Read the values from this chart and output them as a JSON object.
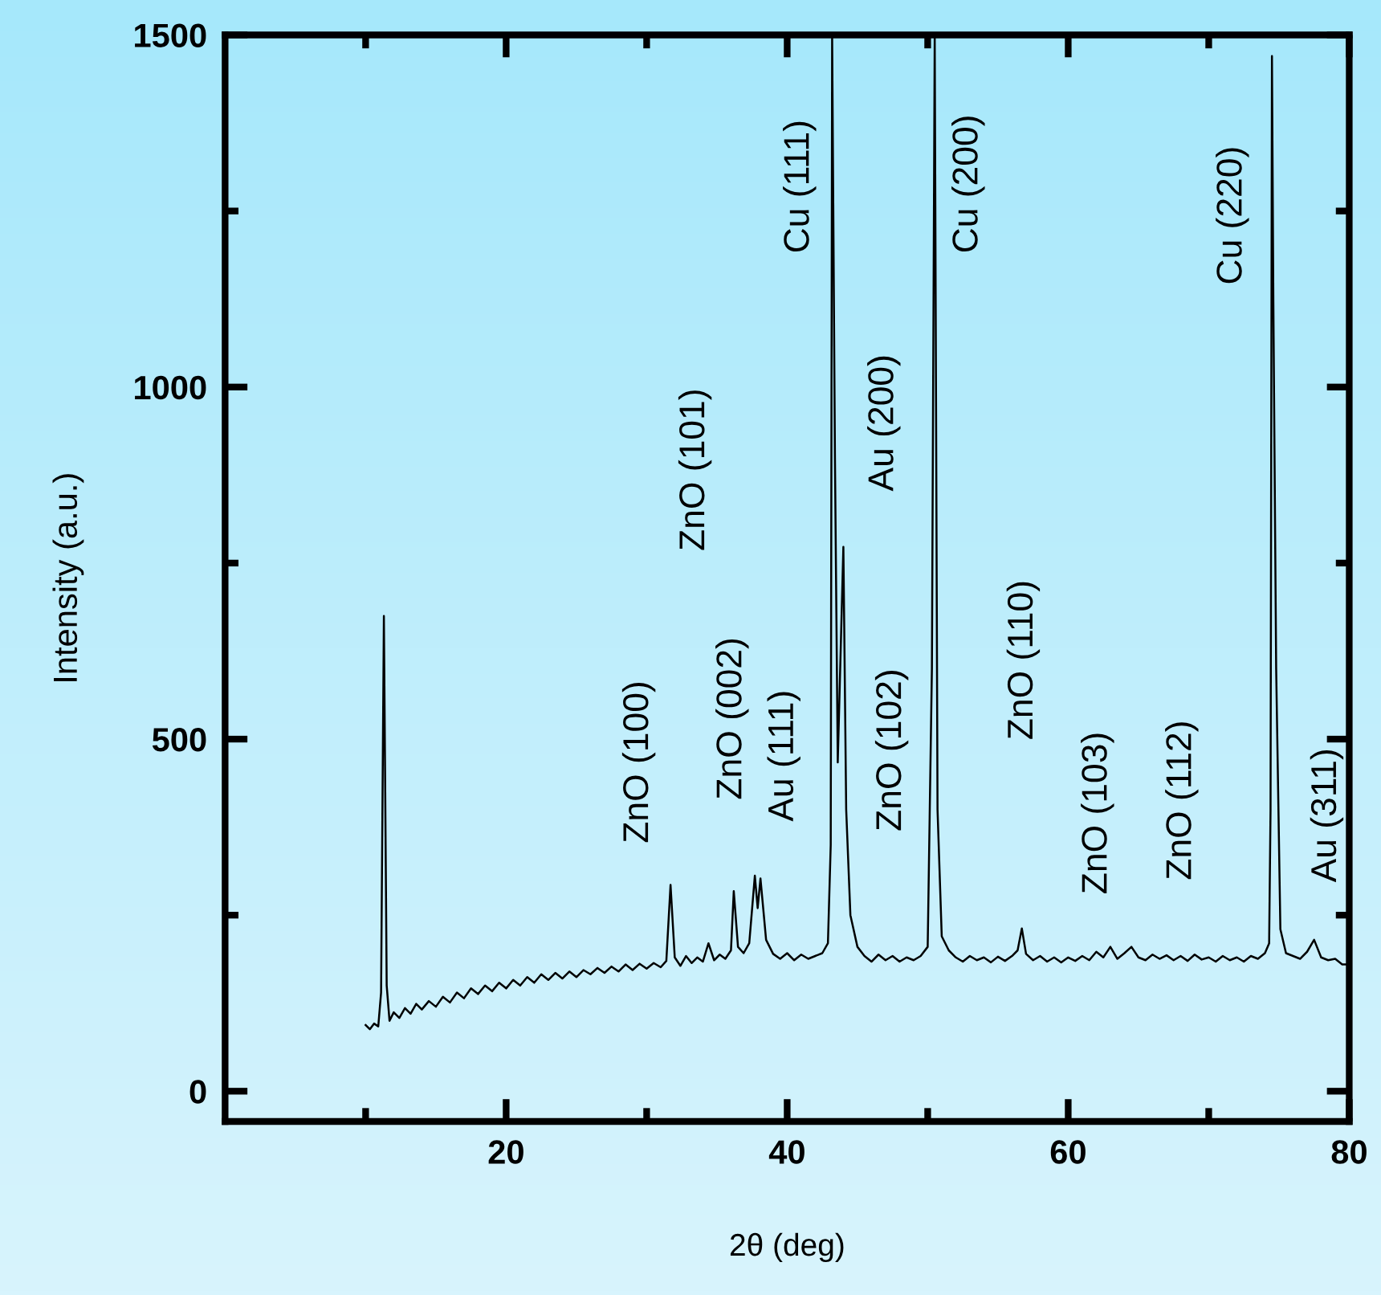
{
  "chart_data": {
    "type": "line",
    "xlabel": "2θ (deg)",
    "ylabel": "Intensity (a.u.)",
    "xlim": [
      0,
      80
    ],
    "ylim": [
      -43,
      1500
    ],
    "xticks": [
      20,
      40,
      60,
      80
    ],
    "yticks": [
      0,
      500,
      1000,
      1500
    ],
    "grid": false,
    "legend": false,
    "marker": "none",
    "line_style": "solid",
    "series": [
      {
        "color": "#000000",
        "x": [
          10.0,
          10.3,
          10.6,
          10.9,
          11.1,
          11.3,
          11.5,
          11.7,
          12.0,
          12.4,
          12.8,
          13.2,
          13.6,
          14.0,
          14.5,
          15.0,
          15.5,
          16.0,
          16.5,
          17.0,
          17.5,
          18.0,
          18.5,
          19.0,
          19.5,
          20.0,
          20.5,
          21.0,
          21.5,
          22.0,
          22.5,
          23.0,
          23.5,
          24.0,
          24.5,
          25.0,
          25.5,
          26.0,
          26.5,
          27.0,
          27.5,
          28.0,
          28.5,
          29.0,
          29.5,
          30.0,
          30.5,
          31.0,
          31.4,
          31.7,
          32.0,
          32.4,
          32.8,
          33.2,
          33.6,
          34.0,
          34.4,
          34.8,
          35.2,
          35.6,
          36.0,
          36.2,
          36.5,
          36.9,
          37.3,
          37.7,
          37.9,
          38.1,
          38.5,
          39.0,
          39.5,
          40.0,
          40.5,
          41.0,
          41.5,
          42.0,
          42.5,
          42.9,
          43.1,
          43.2,
          43.4,
          43.6,
          44.0,
          44.2,
          44.5,
          45.0,
          45.5,
          46.0,
          46.5,
          47.0,
          47.5,
          48.0,
          48.5,
          49.0,
          49.5,
          50.0,
          50.3,
          50.5,
          50.7,
          51.0,
          51.5,
          52.0,
          52.5,
          53.0,
          53.5,
          54.0,
          54.5,
          55.0,
          55.5,
          56.0,
          56.4,
          56.7,
          57.0,
          57.5,
          58.0,
          58.5,
          59.0,
          59.5,
          60.0,
          60.5,
          61.0,
          61.5,
          62.0,
          62.5,
          63.0,
          63.5,
          64.0,
          64.5,
          65.0,
          65.5,
          66.0,
          66.5,
          67.0,
          67.5,
          68.0,
          68.5,
          69.0,
          69.5,
          70.0,
          70.5,
          71.0,
          71.5,
          72.0,
          72.5,
          73.0,
          73.5,
          74.0,
          74.3,
          74.4,
          74.5,
          74.6,
          74.8,
          75.1,
          75.5,
          76.0,
          76.5,
          77.0,
          77.5,
          78.0,
          78.5,
          79.0,
          79.5,
          80.0
        ],
        "values": [
          94,
          88,
          96,
          92,
          140,
          675,
          150,
          100,
          112,
          104,
          118,
          110,
          124,
          116,
          128,
          120,
          134,
          126,
          140,
          132,
          146,
          138,
          150,
          142,
          154,
          146,
          158,
          150,
          162,
          154,
          166,
          158,
          168,
          160,
          170,
          162,
          172,
          166,
          175,
          168,
          177,
          170,
          180,
          172,
          181,
          174,
          182,
          176,
          185,
          293,
          190,
          178,
          192,
          182,
          190,
          184,
          210,
          186,
          194,
          188,
          200,
          284,
          205,
          196,
          210,
          306,
          260,
          302,
          215,
          195,
          188,
          196,
          186,
          194,
          188,
          192,
          196,
          210,
          350,
          1500,
          900,
          467,
          773,
          400,
          250,
          205,
          192,
          184,
          194,
          186,
          192,
          184,
          190,
          186,
          192,
          205,
          600,
          1500,
          400,
          220,
          200,
          190,
          184,
          192,
          186,
          190,
          183,
          191,
          185,
          192,
          200,
          231,
          195,
          186,
          192,
          184,
          190,
          183,
          190,
          185,
          192,
          186,
          198,
          190,
          205,
          188,
          196,
          205,
          190,
          186,
          194,
          188,
          193,
          186,
          192,
          185,
          194,
          187,
          190,
          184,
          192,
          186,
          190,
          184,
          192,
          188,
          196,
          210,
          400,
          1470,
          1120,
          600,
          230,
          196,
          192,
          188,
          198,
          215,
          190,
          186,
          188,
          180,
          180
        ]
      }
    ],
    "annotations": [
      "ZnO (100)",
      "ZnO (101)",
      "ZnO (002)",
      "Au (111)",
      "Cu (111)",
      "Au (200)",
      "ZnO (102)",
      "Cu (200)",
      "ZnO (110)",
      "ZnO (103)",
      "ZnO (112)",
      "Cu (220)",
      "Au (311)"
    ]
  }
}
